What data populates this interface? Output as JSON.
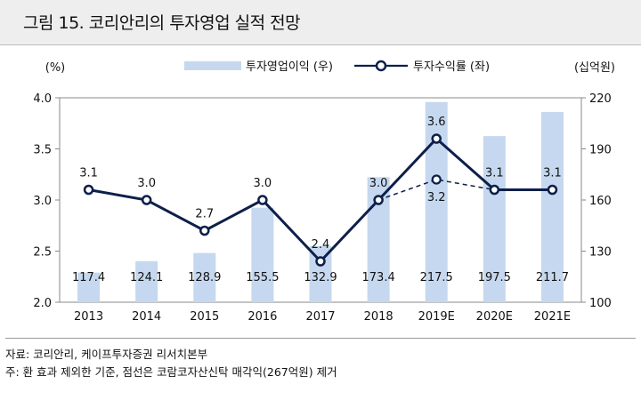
{
  "title": "그림 15.  코리안리의 투자영업 실적 전망",
  "footer": {
    "source": "자료: 코리안리, 케이프투자증권 리서치본부",
    "note": "주: 환 효과 제외한 기준, 점선은 코람코자산신탁 매각익(267억원) 제거"
  },
  "chart_data": {
    "type": "bar+line",
    "left_unit": "(%)",
    "right_unit": "(십억원)",
    "categories": [
      "2013",
      "2014",
      "2015",
      "2016",
      "2017",
      "2018",
      "2019E",
      "2020E",
      "2021E"
    ],
    "left_axis": {
      "ylim": [
        2.0,
        4.0
      ],
      "ticks": [
        "2.0",
        "2.5",
        "3.0",
        "3.5",
        "4.0"
      ]
    },
    "right_axis": {
      "ylim": [
        100,
        220
      ],
      "ticks": [
        "100",
        "130",
        "160",
        "190",
        "220"
      ]
    },
    "grid": false,
    "legend_position": "top",
    "bar_series": {
      "name": "투자영업이익 (우)",
      "axis": "right",
      "color": "#c5d8ef",
      "values": [
        117.4,
        124.1,
        128.9,
        155.5,
        132.9,
        173.4,
        217.5,
        197.5,
        211.7
      ],
      "labels": [
        "117.4",
        "124.1",
        "128.9",
        "155.5",
        "132.9",
        "173.4",
        "217.5",
        "197.5",
        "211.7"
      ]
    },
    "line_series": {
      "name": "투자수익률 (좌)",
      "axis": "left",
      "color": "#0d1f4a",
      "values": [
        3.1,
        3.0,
        2.7,
        3.0,
        2.4,
        3.0,
        3.6,
        3.1,
        3.1
      ],
      "labels": [
        "3.1",
        "3.0",
        "2.7",
        "3.0",
        "2.4",
        "3.0",
        "3.6",
        "3.1",
        "3.1"
      ]
    },
    "dashed_series": {
      "axis": "left",
      "style": "dashed",
      "x": [
        "2018",
        "2019E",
        "2020E"
      ],
      "values": [
        3.0,
        3.2,
        3.1
      ],
      "labels": [
        "",
        "3.2",
        ""
      ]
    }
  }
}
